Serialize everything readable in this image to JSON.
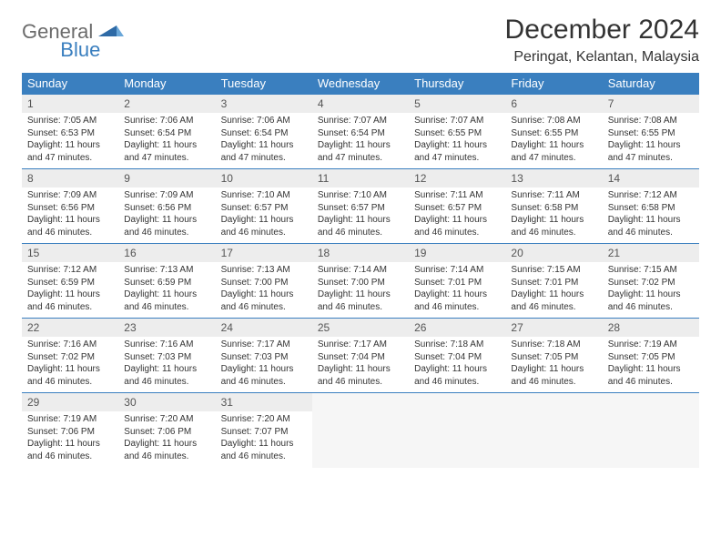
{
  "brand": {
    "part1": "General",
    "part2": "Blue"
  },
  "title": "December 2024",
  "location": "Peringat, Kelantan, Malaysia",
  "colors": {
    "header_bg": "#3a7fbf",
    "header_fg": "#ffffff",
    "daynum_bg": "#ededed",
    "row_divider": "#3a7fbf",
    "logo_gray": "#6b6b6b",
    "logo_blue": "#3a7fbf",
    "page_bg": "#ffffff"
  },
  "layout": {
    "columns": 7,
    "type": "calendar-month"
  },
  "weekdays": [
    "Sunday",
    "Monday",
    "Tuesday",
    "Wednesday",
    "Thursday",
    "Friday",
    "Saturday"
  ],
  "days": [
    {
      "n": 1,
      "sunrise": "7:05 AM",
      "sunset": "6:53 PM",
      "daylight": "11 hours and 47 minutes."
    },
    {
      "n": 2,
      "sunrise": "7:06 AM",
      "sunset": "6:54 PM",
      "daylight": "11 hours and 47 minutes."
    },
    {
      "n": 3,
      "sunrise": "7:06 AM",
      "sunset": "6:54 PM",
      "daylight": "11 hours and 47 minutes."
    },
    {
      "n": 4,
      "sunrise": "7:07 AM",
      "sunset": "6:54 PM",
      "daylight": "11 hours and 47 minutes."
    },
    {
      "n": 5,
      "sunrise": "7:07 AM",
      "sunset": "6:55 PM",
      "daylight": "11 hours and 47 minutes."
    },
    {
      "n": 6,
      "sunrise": "7:08 AM",
      "sunset": "6:55 PM",
      "daylight": "11 hours and 47 minutes."
    },
    {
      "n": 7,
      "sunrise": "7:08 AM",
      "sunset": "6:55 PM",
      "daylight": "11 hours and 47 minutes."
    },
    {
      "n": 8,
      "sunrise": "7:09 AM",
      "sunset": "6:56 PM",
      "daylight": "11 hours and 46 minutes."
    },
    {
      "n": 9,
      "sunrise": "7:09 AM",
      "sunset": "6:56 PM",
      "daylight": "11 hours and 46 minutes."
    },
    {
      "n": 10,
      "sunrise": "7:10 AM",
      "sunset": "6:57 PM",
      "daylight": "11 hours and 46 minutes."
    },
    {
      "n": 11,
      "sunrise": "7:10 AM",
      "sunset": "6:57 PM",
      "daylight": "11 hours and 46 minutes."
    },
    {
      "n": 12,
      "sunrise": "7:11 AM",
      "sunset": "6:57 PM",
      "daylight": "11 hours and 46 minutes."
    },
    {
      "n": 13,
      "sunrise": "7:11 AM",
      "sunset": "6:58 PM",
      "daylight": "11 hours and 46 minutes."
    },
    {
      "n": 14,
      "sunrise": "7:12 AM",
      "sunset": "6:58 PM",
      "daylight": "11 hours and 46 minutes."
    },
    {
      "n": 15,
      "sunrise": "7:12 AM",
      "sunset": "6:59 PM",
      "daylight": "11 hours and 46 minutes."
    },
    {
      "n": 16,
      "sunrise": "7:13 AM",
      "sunset": "6:59 PM",
      "daylight": "11 hours and 46 minutes."
    },
    {
      "n": 17,
      "sunrise": "7:13 AM",
      "sunset": "7:00 PM",
      "daylight": "11 hours and 46 minutes."
    },
    {
      "n": 18,
      "sunrise": "7:14 AM",
      "sunset": "7:00 PM",
      "daylight": "11 hours and 46 minutes."
    },
    {
      "n": 19,
      "sunrise": "7:14 AM",
      "sunset": "7:01 PM",
      "daylight": "11 hours and 46 minutes."
    },
    {
      "n": 20,
      "sunrise": "7:15 AM",
      "sunset": "7:01 PM",
      "daylight": "11 hours and 46 minutes."
    },
    {
      "n": 21,
      "sunrise": "7:15 AM",
      "sunset": "7:02 PM",
      "daylight": "11 hours and 46 minutes."
    },
    {
      "n": 22,
      "sunrise": "7:16 AM",
      "sunset": "7:02 PM",
      "daylight": "11 hours and 46 minutes."
    },
    {
      "n": 23,
      "sunrise": "7:16 AM",
      "sunset": "7:03 PM",
      "daylight": "11 hours and 46 minutes."
    },
    {
      "n": 24,
      "sunrise": "7:17 AM",
      "sunset": "7:03 PM",
      "daylight": "11 hours and 46 minutes."
    },
    {
      "n": 25,
      "sunrise": "7:17 AM",
      "sunset": "7:04 PM",
      "daylight": "11 hours and 46 minutes."
    },
    {
      "n": 26,
      "sunrise": "7:18 AM",
      "sunset": "7:04 PM",
      "daylight": "11 hours and 46 minutes."
    },
    {
      "n": 27,
      "sunrise": "7:18 AM",
      "sunset": "7:05 PM",
      "daylight": "11 hours and 46 minutes."
    },
    {
      "n": 28,
      "sunrise": "7:19 AM",
      "sunset": "7:05 PM",
      "daylight": "11 hours and 46 minutes."
    },
    {
      "n": 29,
      "sunrise": "7:19 AM",
      "sunset": "7:06 PM",
      "daylight": "11 hours and 46 minutes."
    },
    {
      "n": 30,
      "sunrise": "7:20 AM",
      "sunset": "7:06 PM",
      "daylight": "11 hours and 46 minutes."
    },
    {
      "n": 31,
      "sunrise": "7:20 AM",
      "sunset": "7:07 PM",
      "daylight": "11 hours and 46 minutes."
    }
  ],
  "labels": {
    "sunrise": "Sunrise:",
    "sunset": "Sunset:",
    "daylight": "Daylight:"
  }
}
